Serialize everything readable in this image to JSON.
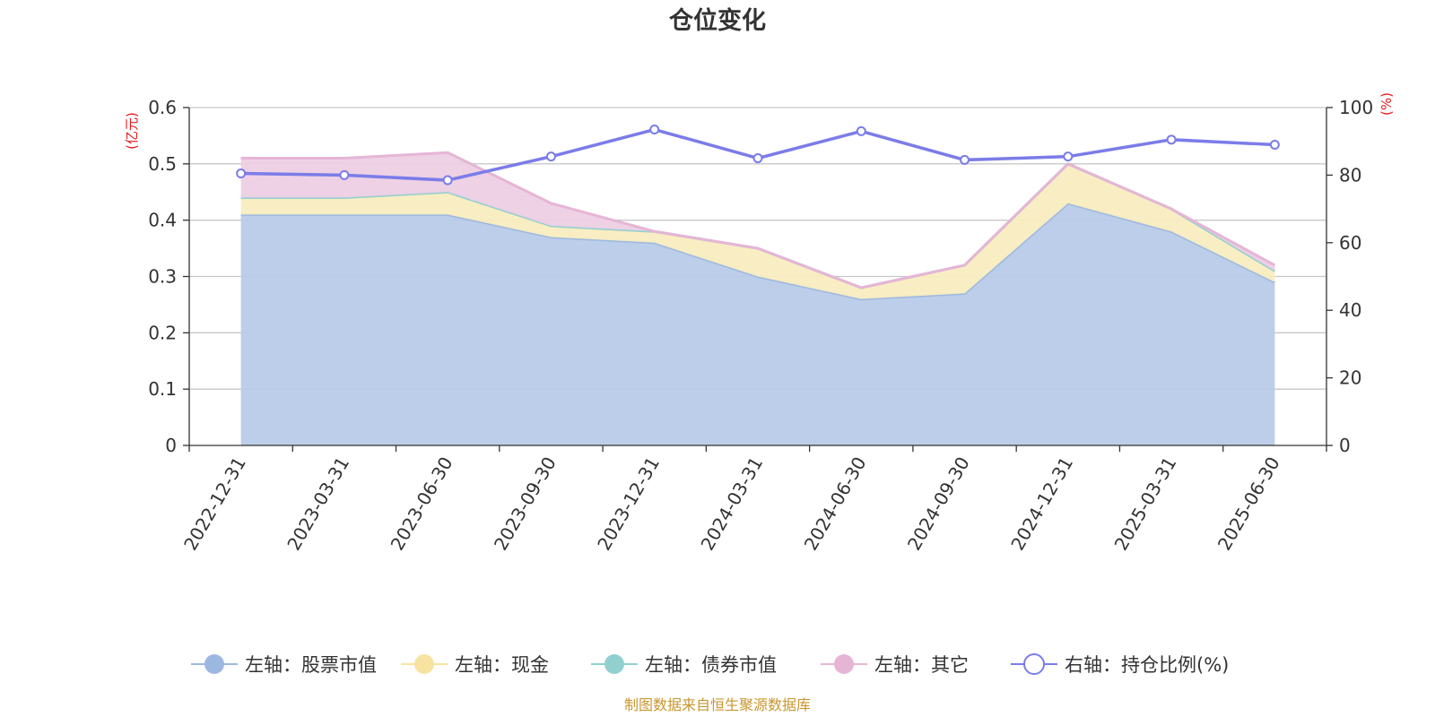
{
  "chart_data": {
    "type": "area",
    "title": "仓位变化",
    "left_unit": "(亿元)",
    "right_unit": "(%)",
    "categories": [
      "2022-12-31",
      "2023-03-31",
      "2023-06-30",
      "2023-09-30",
      "2023-12-31",
      "2024-03-31",
      "2024-06-30",
      "2024-09-30",
      "2024-12-31",
      "2025-03-31",
      "2025-06-30"
    ],
    "left_axis": {
      "min": 0,
      "max": 0.6,
      "ticks": [
        "0",
        "0.1",
        "0.2",
        "0.3",
        "0.4",
        "0.5",
        "0.6"
      ]
    },
    "right_axis": {
      "min": 0,
      "max": 100,
      "ticks": [
        "0",
        "20",
        "40",
        "60",
        "80",
        "100"
      ]
    },
    "stacked": true,
    "grid": true,
    "series": [
      {
        "name": "左轴：股票市值",
        "axis": "left",
        "color": "#9db8e0",
        "fill": "#b8cbe8",
        "values": [
          0.41,
          0.41,
          0.41,
          0.37,
          0.36,
          0.3,
          0.26,
          0.27,
          0.43,
          0.38,
          0.29
        ]
      },
      {
        "name": "左轴：现金",
        "axis": "left",
        "color": "#f6e3a0",
        "fill": "#f9edc0",
        "values": [
          0.03,
          0.03,
          0.04,
          0.02,
          0.02,
          0.05,
          0.02,
          0.05,
          0.07,
          0.04,
          0.02
        ]
      },
      {
        "name": "左轴：债券市值",
        "axis": "left",
        "color": "#92d0d0",
        "fill": "#b3dfdf",
        "values": [
          0,
          0,
          0,
          0,
          0,
          0,
          0,
          0,
          0,
          0,
          0
        ]
      },
      {
        "name": "左轴：其它",
        "axis": "left",
        "color": "#e6b5d6",
        "fill": "#edcfe4",
        "values": [
          0.07,
          0.07,
          0.07,
          0.04,
          0.0,
          0.0,
          0.0,
          0.0,
          0.0,
          0.0,
          0.01
        ]
      },
      {
        "name": "右轴：持仓比例(%)",
        "axis": "right",
        "type": "line",
        "color": "#7b7ce8",
        "values": [
          80.5,
          80.0,
          78.5,
          85.5,
          93.5,
          85.0,
          93.0,
          84.5,
          85.5,
          90.5,
          89.0
        ]
      }
    ],
    "legend_position": "bottom-center",
    "source": "制图数据来自恒生聚源数据库"
  }
}
